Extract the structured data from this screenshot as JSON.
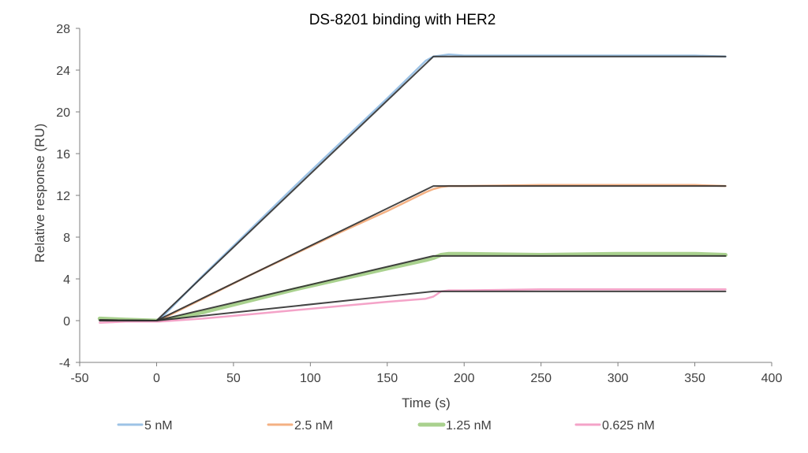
{
  "chart_data": {
    "type": "line",
    "title": "DS-8201 binding with HER2",
    "xlabel": "Time (s)",
    "ylabel": "Relative response (RU)",
    "xlim": [
      -50,
      400
    ],
    "ylim": [
      -4,
      28
    ],
    "xticks": [
      -50,
      0,
      50,
      100,
      150,
      200,
      250,
      300,
      350,
      400
    ],
    "yticks": [
      -4,
      0,
      4,
      8,
      12,
      16,
      20,
      24,
      28
    ],
    "grid": false,
    "legend_position": "bottom",
    "series": [
      {
        "name": "5 nM",
        "color": "#9DC3E6",
        "width": 2.5,
        "x": [
          -37,
          -20,
          0,
          2,
          30,
          60,
          90,
          120,
          150,
          175,
          180,
          185,
          190,
          200,
          250,
          300,
          350,
          370
        ],
        "y": [
          0.1,
          0.05,
          0.0,
          0.1,
          4.3,
          8.6,
          12.9,
          17.1,
          21.3,
          24.9,
          25.3,
          25.4,
          25.5,
          25.4,
          25.4,
          25.4,
          25.4,
          25.3
        ]
      },
      {
        "name": "2.5 nM",
        "color": "#F4B183",
        "width": 2.5,
        "x": [
          -37,
          -20,
          0,
          2,
          30,
          60,
          90,
          120,
          150,
          175,
          180,
          185,
          190,
          200,
          250,
          300,
          350,
          370
        ],
        "y": [
          0.2,
          0.1,
          0.0,
          0.05,
          2.1,
          4.3,
          6.4,
          8.5,
          10.5,
          12.3,
          12.6,
          12.8,
          12.9,
          12.9,
          13.0,
          13.0,
          13.0,
          12.9
        ]
      },
      {
        "name": "1.25 nM",
        "color": "#A9D18E",
        "width": 5,
        "x": [
          -37,
          -20,
          0,
          5,
          30,
          60,
          90,
          120,
          150,
          175,
          180,
          185,
          190,
          200,
          250,
          300,
          350,
          370
        ],
        "y": [
          0.2,
          0.1,
          0.0,
          0.05,
          0.8,
          1.9,
          3.0,
          4.0,
          5.0,
          5.8,
          6.0,
          6.3,
          6.4,
          6.4,
          6.3,
          6.4,
          6.4,
          6.3
        ]
      },
      {
        "name": "0.625 nM",
        "color": "#F4A3C8",
        "width": 2.5,
        "x": [
          -37,
          -20,
          0,
          5,
          30,
          60,
          90,
          120,
          150,
          175,
          180,
          185,
          190,
          200,
          250,
          300,
          350,
          370
        ],
        "y": [
          -0.2,
          -0.1,
          -0.1,
          -0.05,
          0.2,
          0.6,
          1.0,
          1.4,
          1.8,
          2.1,
          2.3,
          2.8,
          2.9,
          2.9,
          3.0,
          3.0,
          3.0,
          3.0
        ]
      }
    ],
    "fits": [
      {
        "color": "#303030",
        "x": [
          -37,
          0,
          180,
          370
        ],
        "y": [
          0.05,
          0.0,
          25.3,
          25.3
        ]
      },
      {
        "color": "#303030",
        "x": [
          -37,
          0,
          180,
          370
        ],
        "y": [
          0.05,
          0.0,
          12.9,
          12.9
        ]
      },
      {
        "color": "#303030",
        "x": [
          -37,
          0,
          180,
          370
        ],
        "y": [
          0.05,
          0.0,
          6.2,
          6.2
        ]
      },
      {
        "color": "#303030",
        "x": [
          -37,
          0,
          180,
          370
        ],
        "y": [
          0.0,
          0.0,
          2.8,
          2.8
        ]
      }
    ]
  }
}
